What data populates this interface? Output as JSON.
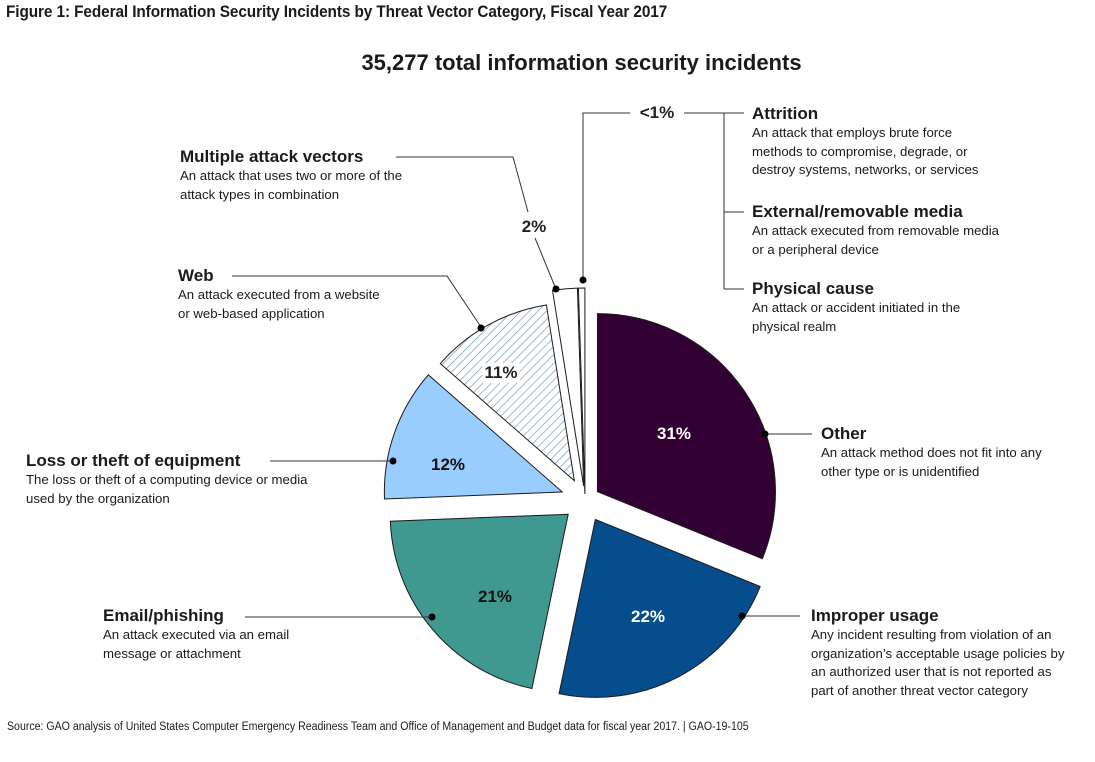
{
  "figure_title": "Figure 1: Federal Information Security Incidents by Threat Vector Category, Fiscal Year 2017",
  "source": "Source: GAO analysis of United States Computer Emergency Readiness Team and Office of Management and Budget data for fiscal year 2017.  |  GAO-19-105",
  "chart_data": {
    "type": "pie",
    "title": "Federal Information Security Incidents by Threat Vector Category, Fiscal Year 2017",
    "subtitle": "35,277 total information security incidents",
    "total_incidents": 35277,
    "start": "12 o'clock",
    "direction": "clockwise",
    "exploded": true,
    "slices": [
      {
        "name": "Other",
        "value": 31,
        "label": "31%",
        "color": "#330033",
        "label_color": "#ffffff",
        "pattern": "solid",
        "description": "An attack method does not fit into any other type or is unidentified"
      },
      {
        "name": "Improper usage",
        "value": 22,
        "label": "22%",
        "color": "#054d8c",
        "label_color": "#ffffff",
        "pattern": "solid",
        "description": "Any incident resulting from violation of an organization’s acceptable usage policies by an authorized user that is not reported as part of another threat vector category"
      },
      {
        "name": "Email/phishing",
        "value": 21,
        "label": "21%",
        "color": "#3f9990",
        "label_color": "#111111",
        "pattern": "solid",
        "description": "An attack executed via an email message or attachment"
      },
      {
        "name": "Loss or theft of equipment",
        "value": 12,
        "label": "12%",
        "color": "#99ccff",
        "label_color": "#111111",
        "pattern": "solid",
        "description": "The loss or theft of a computing device or media used by the organization"
      },
      {
        "name": "Web",
        "value": 11,
        "label": "11%",
        "color": "#ffffff",
        "label_color": "#222222",
        "pattern": "diagonal-hatch",
        "hatch_color": "#6b8fbf",
        "description": "An attack executed from a website or web-based application"
      },
      {
        "name": "Multiple attack vectors",
        "value": 2,
        "label": "2%",
        "color": "#ffffff",
        "label_color": "#222222",
        "pattern": "solid",
        "description": "An attack that uses two or more of the attack types in combination"
      },
      {
        "name": "Attrition / External/removable media / Physical cause",
        "value": 0.5,
        "label": "<1%",
        "color": "#ffffff",
        "label_color": "#222222",
        "pattern": "solid",
        "grouped": [
          {
            "name": "Attrition",
            "description": "An attack that employs brute force methods to compromise, degrade, or destroy systems, networks, or services"
          },
          {
            "name": "External/removable media",
            "description": "An attack executed from removable media or a peripheral device"
          },
          {
            "name": "Physical cause",
            "description": "An attack or accident initiated in the physical realm"
          }
        ]
      }
    ]
  },
  "labels": {
    "other": {
      "name": "Other",
      "desc1": "An attack method does not fit into any",
      "desc2": "other type or is unidentified"
    },
    "improper": {
      "name": "Improper usage",
      "desc1": "Any incident resulting from violation of an",
      "desc2": "organization’s acceptable usage policies by",
      "desc3": "an authorized user that is not reported as",
      "desc4": "part of another threat vector category"
    },
    "email": {
      "name": "Email/phishing",
      "desc1": "An attack executed via an email",
      "desc2": "message or attachment"
    },
    "loss": {
      "name": "Loss or theft of equipment",
      "desc1": "The loss or theft of a computing device or media",
      "desc2": "used by the organization"
    },
    "web": {
      "name": "Web",
      "desc1": "An attack executed from a website",
      "desc2": "or web-based application"
    },
    "multiple": {
      "name": "Multiple attack vectors",
      "desc1": "An attack that uses two or more of the",
      "desc2": "attack types in combination"
    },
    "attrition": {
      "name": "Attrition",
      "desc1": "An attack that employs brute force",
      "desc2": "methods to compromise, degrade, or",
      "desc3": "destroy systems, networks, or services"
    },
    "external": {
      "name": "External/removable media",
      "desc1": "An attack executed from removable media",
      "desc2": "or a peripheral device"
    },
    "physical": {
      "name": "Physical cause",
      "desc1": "An attack or accident initiated in the",
      "desc2": "physical realm"
    }
  },
  "pct_labels": {
    "other": "31%",
    "improper": "22%",
    "email": "21%",
    "loss": "12%",
    "web": "11%",
    "multiple": "2%",
    "small": "<1%"
  }
}
